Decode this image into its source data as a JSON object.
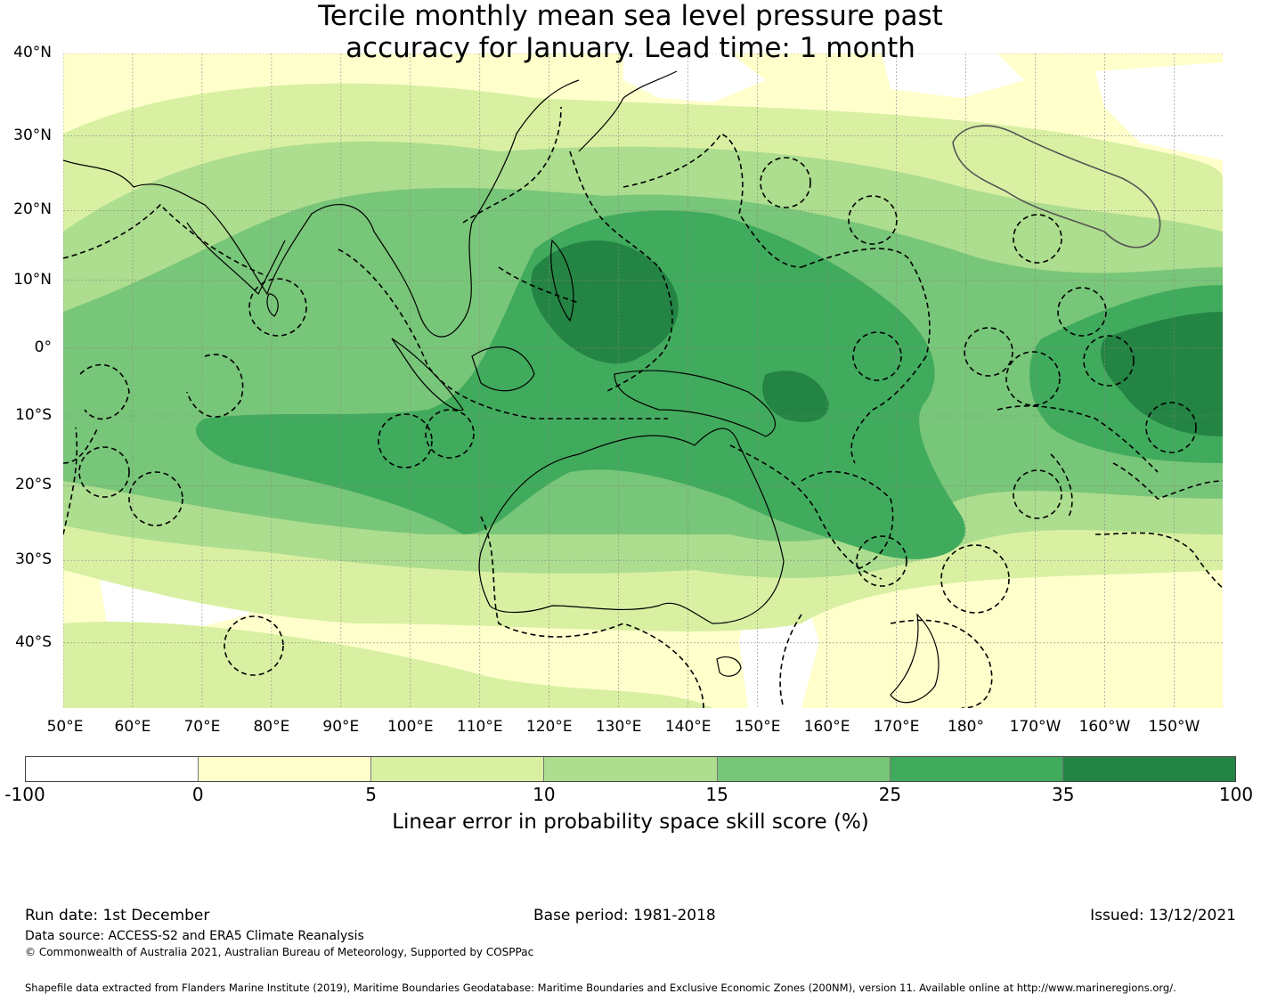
{
  "title_line1": "Tercile monthly mean sea level pressure past",
  "title_line2": "accuracy for January. Lead time: 1 month",
  "map": {
    "lat_labels": [
      "40°N",
      "30°N",
      "20°N",
      "10°N",
      "0°",
      "10°S",
      "20°S",
      "30°S",
      "40°S"
    ],
    "lon_labels": [
      "50°E",
      "60°E",
      "70°E",
      "80°E",
      "90°E",
      "100°E",
      "110°E",
      "120°E",
      "130°E",
      "140°E",
      "150°E",
      "160°E",
      "170°E",
      "180°",
      "170°W",
      "160°W",
      "150°W"
    ],
    "extent": {
      "lon_min": 50,
      "lon_max": 217,
      "lat_min": -47,
      "lat_max": 40
    }
  },
  "colorbar": {
    "ticks": [
      "-100",
      "0",
      "5",
      "10",
      "15",
      "25",
      "35",
      "100"
    ],
    "colors": [
      "#ffffff",
      "#ffffcc",
      "#d9f0a3",
      "#addd8e",
      "#78c679",
      "#41ab5d",
      "#238443"
    ],
    "label": "Linear error in probability space skill score (%)"
  },
  "footer": {
    "run_date": "Run date: 1st December",
    "base_period": "Base period: 1981-2018",
    "issued": "Issued: 13/12/2021",
    "data_source": "Data source: ACCESS-S2 and ERA5 Climate Reanalysis",
    "copyright": "© Commonwealth of Australia 2021, Australian Bureau of Meteorology, Supported by COSPPac",
    "shapefile": "Shapefile data extracted from Flanders Marine Institute (2019), Maritime Boundaries Geodatabase: Maritime Boundaries and Exclusive Economic Zones (200NM), version 11. Available online at http://www.marineregions.org/."
  }
}
